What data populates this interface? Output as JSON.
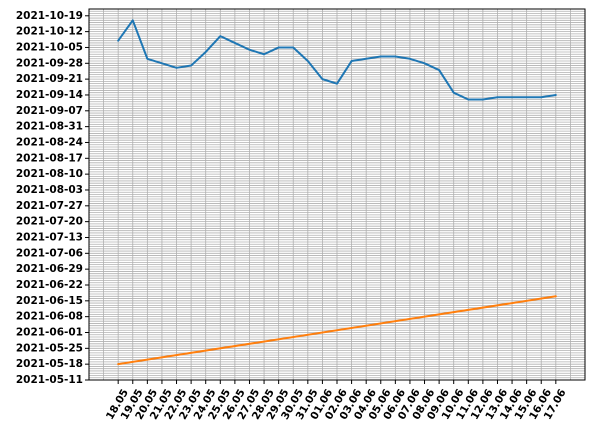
{
  "chart_data": {
    "type": "line",
    "title": "",
    "xlabel": "",
    "ylabel": "",
    "grid": true,
    "x_tick_labels": [
      "18.05",
      "19.05",
      "20.05",
      "21.05",
      "22.05",
      "23.05",
      "24.05",
      "25.05",
      "26.05",
      "27.05",
      "28.05",
      "29.05",
      "30.05",
      "31.05",
      "01.06",
      "02.06",
      "03.06",
      "04.06",
      "05.06",
      "06.06",
      "07.06",
      "08.06",
      "09.06",
      "10.06",
      "11.06",
      "12.06",
      "13.06",
      "14.06",
      "15.06",
      "16.06",
      "17.06"
    ],
    "y_tick_labels": [
      "2021-05-11",
      "2021-05-18",
      "2021-05-25",
      "2021-06-01",
      "2021-06-08",
      "2021-06-15",
      "2021-06-22",
      "2021-06-29",
      "2021-07-06",
      "2021-07-13",
      "2021-07-20",
      "2021-07-27",
      "2021-08-03",
      "2021-08-10",
      "2021-08-17",
      "2021-08-24",
      "2021-08-31",
      "2021-09-07",
      "2021-09-14",
      "2021-09-21",
      "2021-09-28",
      "2021-10-05",
      "2021-10-12",
      "2021-10-19"
    ],
    "x_range": [
      "2021-05-16",
      "2021-06-19"
    ],
    "y_range": [
      "2021-05-11",
      "2021-10-22"
    ],
    "series": [
      {
        "color": "#1f77b4",
        "points": [
          [
            "2021-05-18",
            "2021-10-08"
          ],
          [
            "2021-05-19",
            "2021-10-17"
          ],
          [
            "2021-05-20",
            "2021-09-30"
          ],
          [
            "2021-05-21",
            "2021-09-28"
          ],
          [
            "2021-05-22",
            "2021-09-26"
          ],
          [
            "2021-05-23",
            "2021-09-27"
          ],
          [
            "2021-05-24",
            "2021-10-03"
          ],
          [
            "2021-05-25",
            "2021-10-10"
          ],
          [
            "2021-05-26",
            "2021-10-07"
          ],
          [
            "2021-05-27",
            "2021-10-04"
          ],
          [
            "2021-05-28",
            "2021-10-02"
          ],
          [
            "2021-05-29",
            "2021-10-05"
          ],
          [
            "2021-05-30",
            "2021-10-05"
          ],
          [
            "2021-05-31",
            "2021-09-29"
          ],
          [
            "2021-06-01",
            "2021-09-21"
          ],
          [
            "2021-06-02",
            "2021-09-19"
          ],
          [
            "2021-06-03",
            "2021-09-29"
          ],
          [
            "2021-06-04",
            "2021-09-30"
          ],
          [
            "2021-06-05",
            "2021-10-01"
          ],
          [
            "2021-06-06",
            "2021-10-01"
          ],
          [
            "2021-06-07",
            "2021-09-30"
          ],
          [
            "2021-06-08",
            "2021-09-28"
          ],
          [
            "2021-06-09",
            "2021-09-25"
          ],
          [
            "2021-06-10",
            "2021-09-15"
          ],
          [
            "2021-06-11",
            "2021-09-12"
          ],
          [
            "2021-06-12",
            "2021-09-12"
          ],
          [
            "2021-06-13",
            "2021-09-13"
          ],
          [
            "2021-06-14",
            "2021-09-13"
          ],
          [
            "2021-06-15",
            "2021-09-13"
          ],
          [
            "2021-06-16",
            "2021-09-13"
          ],
          [
            "2021-06-17",
            "2021-09-14"
          ]
        ]
      },
      {
        "color": "#ff7f0e",
        "points": [
          [
            "2021-05-18",
            "2021-05-18"
          ],
          [
            "2021-06-17",
            "2021-06-17"
          ]
        ]
      }
    ]
  }
}
